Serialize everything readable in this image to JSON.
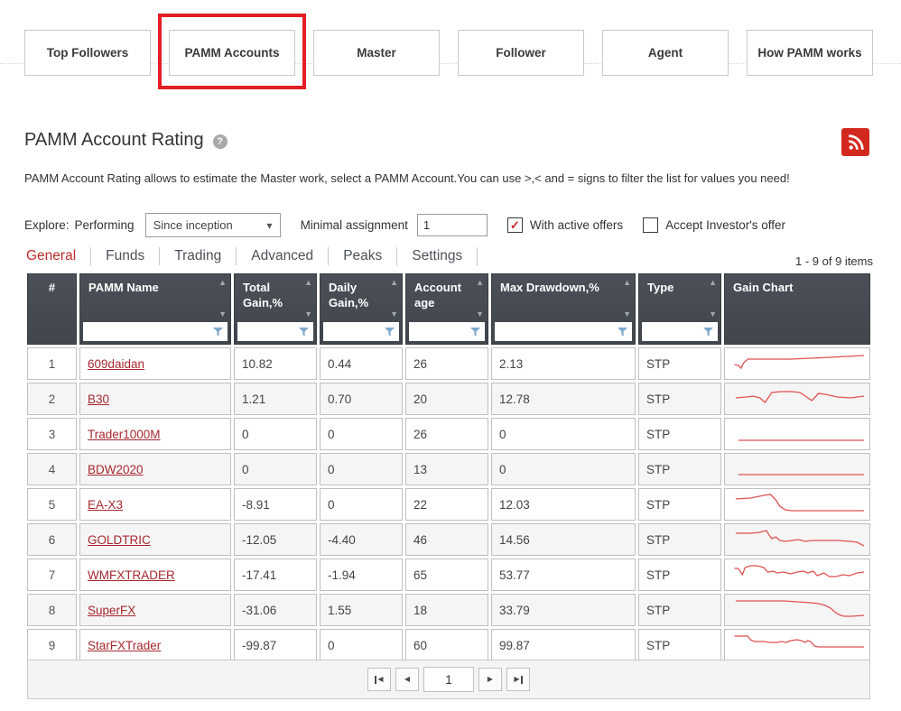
{
  "nav": {
    "buttons": [
      {
        "label": "Top Followers"
      },
      {
        "label": "PAMM Accounts",
        "highlighted": true
      },
      {
        "label": "Master"
      },
      {
        "label": "Follower"
      },
      {
        "label": "Agent"
      },
      {
        "label": "How PAMM works"
      }
    ]
  },
  "header": {
    "title": "PAMM Account Rating",
    "help_icon": "?",
    "description": "PAMM Account Rating allows to estimate the Master work, select a PAMM Account.You can use >,< and = signs to filter the list for values you need!"
  },
  "filters": {
    "explore_label": "Explore:",
    "performing_label": "Performing",
    "period_select_value": "Since inception",
    "minimal_assignment_label": "Minimal assignment",
    "minimal_assignment_value": "1",
    "with_active_offers": {
      "label": "With active offers",
      "checked": true,
      "checkmark": "✓"
    },
    "accept_investors_offer": {
      "label": "Accept Investor's offer",
      "checked": false
    }
  },
  "tabs": {
    "items": [
      {
        "label": "General",
        "active": true
      },
      {
        "label": "Funds"
      },
      {
        "label": "Trading"
      },
      {
        "label": "Advanced"
      },
      {
        "label": "Peaks"
      },
      {
        "label": "Settings"
      }
    ],
    "count_text": "1 - 9 of 9 items"
  },
  "table": {
    "columns": [
      {
        "label": "#"
      },
      {
        "label": "PAMM Name",
        "sortable": true,
        "filterable": true
      },
      {
        "label": "Total Gain,%",
        "sortable": true,
        "filterable": true
      },
      {
        "label": "Daily Gain,%",
        "sortable": true,
        "filterable": true
      },
      {
        "label": "Account age",
        "sortable": true,
        "filterable": true
      },
      {
        "label": "Max Drawdown,%",
        "sortable": true,
        "filterable": true
      },
      {
        "label": "Type",
        "sortable": true,
        "filterable": true
      },
      {
        "label": "Gain Chart"
      }
    ],
    "rows": [
      {
        "num": "1",
        "name": "609daidan",
        "total_gain": "10.82",
        "daily_gain": "0.44",
        "account_age": "26",
        "max_drawdown": "2.13",
        "type": "STP"
      },
      {
        "num": "2",
        "name": "B30",
        "total_gain": "1.21",
        "daily_gain": "0.70",
        "account_age": "20",
        "max_drawdown": "12.78",
        "type": "STP"
      },
      {
        "num": "3",
        "name": "Trader1000M",
        "total_gain": "0",
        "daily_gain": "0",
        "account_age": "26",
        "max_drawdown": "0",
        "type": "STP"
      },
      {
        "num": "4",
        "name": "BDW2020",
        "total_gain": "0",
        "daily_gain": "0",
        "account_age": "13",
        "max_drawdown": "0",
        "type": "STP"
      },
      {
        "num": "5",
        "name": "EA-X3",
        "total_gain": "-8.91",
        "daily_gain": "0",
        "account_age": "22",
        "max_drawdown": "12.03",
        "type": "STP"
      },
      {
        "num": "6",
        "name": "GOLDTRIC",
        "total_gain": "-12.05",
        "daily_gain": "-4.40",
        "account_age": "46",
        "max_drawdown": "14.56",
        "type": "STP"
      },
      {
        "num": "7",
        "name": "WMFXTRADER",
        "total_gain": "-17.41",
        "daily_gain": "-1.94",
        "account_age": "65",
        "max_drawdown": "53.77",
        "type": "STP"
      },
      {
        "num": "8",
        "name": "SuperFX",
        "total_gain": "-31.06",
        "daily_gain": "1.55",
        "account_age": "18",
        "max_drawdown": "33.79",
        "type": "STP"
      },
      {
        "num": "9",
        "name": "StarFXTrader",
        "total_gain": "-99.87",
        "daily_gain": "0",
        "account_age": "60",
        "max_drawdown": "99.87",
        "type": "STP"
      }
    ]
  },
  "chart_data": {
    "type": "line",
    "title": "Gain Chart sparklines (one red line per PAMM account row)",
    "color": "#e05252",
    "x_range": [
      0,
      100
    ],
    "y_range": [
      0,
      30
    ],
    "sparklines": [
      {
        "name": "609daidan",
        "points": [
          [
            3,
            16
          ],
          [
            6,
            17
          ],
          [
            8,
            20
          ],
          [
            10,
            14
          ],
          [
            13,
            10
          ],
          [
            25,
            10
          ],
          [
            45,
            10
          ],
          [
            60,
            9
          ],
          [
            75,
            8
          ],
          [
            100,
            6
          ]
        ]
      },
      {
        "name": "B30",
        "points": [
          [
            4,
            14
          ],
          [
            12,
            13
          ],
          [
            17,
            12
          ],
          [
            22,
            14
          ],
          [
            26,
            19
          ],
          [
            31,
            8
          ],
          [
            38,
            7
          ],
          [
            46,
            7
          ],
          [
            52,
            8
          ],
          [
            57,
            13
          ],
          [
            61,
            17
          ],
          [
            66,
            9
          ],
          [
            71,
            10
          ],
          [
            80,
            13
          ],
          [
            90,
            14
          ],
          [
            100,
            12
          ]
        ]
      },
      {
        "name": "Trader1000M",
        "points": [
          [
            6,
            22
          ],
          [
            100,
            22
          ]
        ]
      },
      {
        "name": "BDW2020",
        "points": [
          [
            6,
            21
          ],
          [
            100,
            21
          ]
        ]
      },
      {
        "name": "EA-X3",
        "points": [
          [
            4,
            9
          ],
          [
            15,
            8
          ],
          [
            25,
            5
          ],
          [
            30,
            4
          ],
          [
            34,
            10
          ],
          [
            37,
            17
          ],
          [
            41,
            21
          ],
          [
            46,
            22
          ],
          [
            100,
            22
          ]
        ]
      },
      {
        "name": "GOLDTRIC",
        "points": [
          [
            4,
            8
          ],
          [
            15,
            8
          ],
          [
            22,
            7
          ],
          [
            27,
            5
          ],
          [
            29,
            10
          ],
          [
            31,
            14
          ],
          [
            34,
            12
          ],
          [
            37,
            16
          ],
          [
            41,
            17
          ],
          [
            46,
            16
          ],
          [
            51,
            15
          ],
          [
            56,
            17
          ],
          [
            61,
            16
          ],
          [
            70,
            16
          ],
          [
            80,
            16
          ],
          [
            90,
            17
          ],
          [
            95,
            18
          ],
          [
            100,
            22
          ]
        ]
      },
      {
        "name": "WMFXTRADER",
        "points": [
          [
            3,
            8
          ],
          [
            6,
            8
          ],
          [
            9,
            15
          ],
          [
            11,
            7
          ],
          [
            15,
            5
          ],
          [
            20,
            5
          ],
          [
            25,
            7
          ],
          [
            28,
            12
          ],
          [
            32,
            11
          ],
          [
            35,
            13
          ],
          [
            40,
            12
          ],
          [
            45,
            14
          ],
          [
            50,
            12
          ],
          [
            55,
            11
          ],
          [
            58,
            13
          ],
          [
            62,
            11
          ],
          [
            65,
            16
          ],
          [
            70,
            13
          ],
          [
            74,
            17
          ],
          [
            79,
            17
          ],
          [
            84,
            15
          ],
          [
            89,
            16
          ],
          [
            95,
            13
          ],
          [
            100,
            12
          ]
        ]
      },
      {
        "name": "SuperFX",
        "points": [
          [
            4,
            5
          ],
          [
            40,
            5
          ],
          [
            50,
            6
          ],
          [
            60,
            7
          ],
          [
            66,
            8
          ],
          [
            71,
            10
          ],
          [
            75,
            13
          ],
          [
            78,
            17
          ],
          [
            81,
            20
          ],
          [
            85,
            22
          ],
          [
            91,
            22
          ],
          [
            100,
            21
          ]
        ]
      },
      {
        "name": "StarFXTrader",
        "points": [
          [
            3,
            5
          ],
          [
            13,
            5
          ],
          [
            15,
            9
          ],
          [
            18,
            11
          ],
          [
            25,
            11
          ],
          [
            30,
            12
          ],
          [
            35,
            12
          ],
          [
            38,
            11
          ],
          [
            42,
            12
          ],
          [
            45,
            10
          ],
          [
            50,
            9
          ],
          [
            53,
            10
          ],
          [
            56,
            12
          ],
          [
            58,
            10
          ],
          [
            60,
            11
          ],
          [
            63,
            16
          ],
          [
            66,
            17
          ],
          [
            100,
            17
          ]
        ]
      }
    ]
  },
  "pager": {
    "page_value": "1"
  },
  "icons": {
    "sort_asc": "▲",
    "sort_desc": "▼",
    "triangle_left": "◀",
    "triangle_right": "▶",
    "select_chevron": "▾"
  },
  "colors": {
    "accent_red": "#bf2a2a",
    "link_red": "#a8282e",
    "sparkline_red": "#e05252",
    "header_bg": "#464b52",
    "annotation_red": "#e31e24",
    "rss_red": "#d3281e",
    "check_red": "#cc2127"
  }
}
